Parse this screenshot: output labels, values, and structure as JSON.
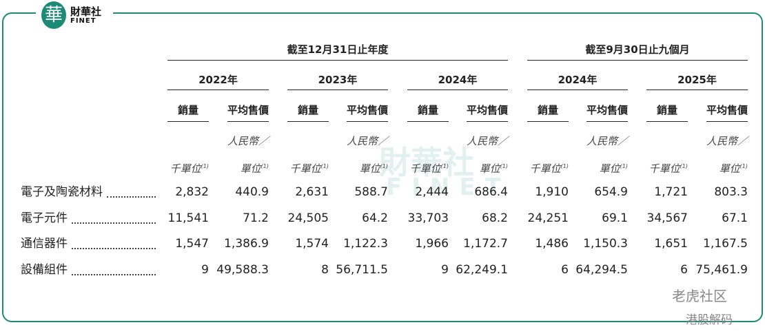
{
  "header": {
    "logo_mark": "華",
    "logo_name": "財華社",
    "logo_sub": "FINET"
  },
  "table": {
    "groups": [
      {
        "label": "截至12月31日止年度",
        "years": [
          "2022年",
          "2023年",
          "2024年"
        ]
      },
      {
        "label": "截至9月30日止九個月",
        "years": [
          "2024年",
          "2025年"
        ]
      }
    ],
    "subheaders": [
      "銷量",
      "平均售價"
    ],
    "unit_price_top": "人民幣／",
    "unit_qty": "千單位",
    "unit_price": "單位",
    "footnote": "(1)",
    "rows": [
      {
        "label": "電子及陶瓷材料",
        "values": [
          "2,832",
          "440.9",
          "2,631",
          "588.7",
          "2,444",
          "686.4",
          "1,910",
          "654.9",
          "1,721",
          "803.3"
        ]
      },
      {
        "label": "電子元件",
        "values": [
          "11,541",
          "71.2",
          "24,505",
          "64.2",
          "33,703",
          "68.2",
          "24,251",
          "69.1",
          "34,567",
          "67.1"
        ]
      },
      {
        "label": "通信器件",
        "values": [
          "1,547",
          "1,386.9",
          "1,574",
          "1,122.3",
          "1,966",
          "1,172.7",
          "1,486",
          "1,150.3",
          "1,651",
          "1,167.5"
        ]
      },
      {
        "label": "設備組件",
        "values": [
          "9",
          "49,588.3",
          "8",
          "56,711.5",
          "9",
          "62,249.1",
          "6",
          "64,294.5",
          "6",
          "75,461.9"
        ]
      }
    ]
  },
  "watermarks": [
    "財華社",
    "FINET",
    "老虎社区",
    "港股解码"
  ]
}
